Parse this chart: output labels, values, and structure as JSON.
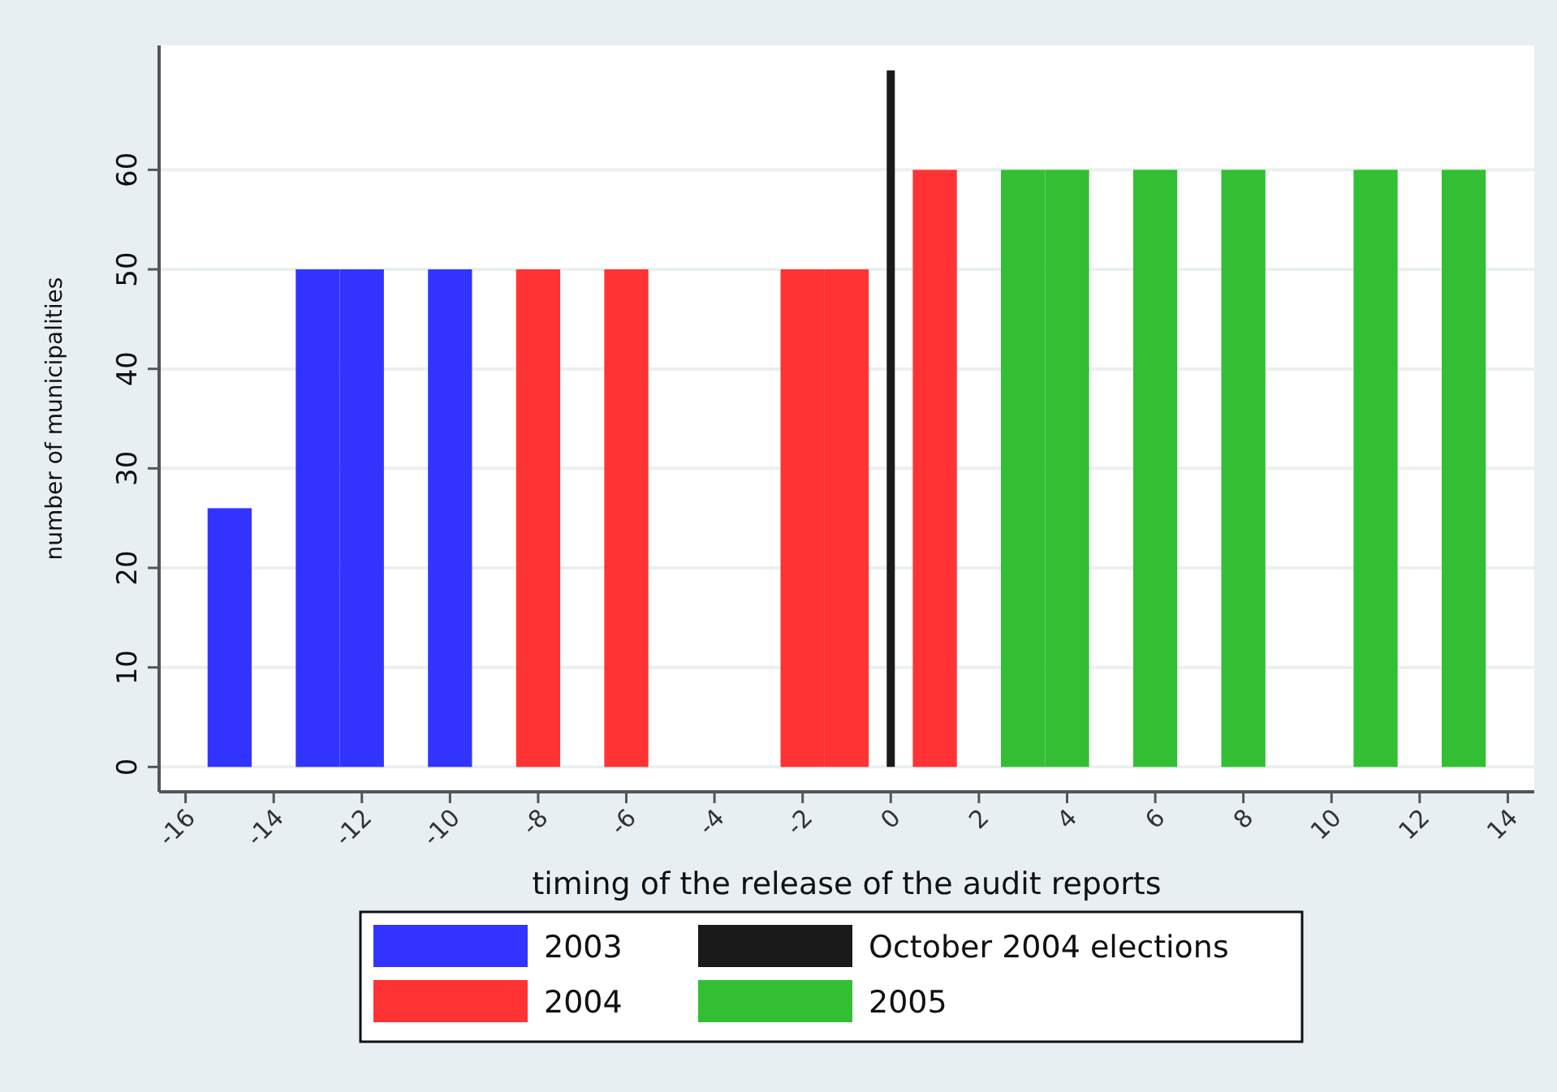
{
  "chart_data": {
    "type": "bar",
    "xlabel": "timing of the release of the audit reports",
    "ylabel": "number of municipalities",
    "series": [
      {
        "name": "2003",
        "color": "#3333ff",
        "x": [
          -15,
          -13,
          -12,
          -10
        ],
        "values": [
          26,
          50,
          50,
          50
        ]
      },
      {
        "name": "2004",
        "color": "#ff3333",
        "x": [
          -8,
          -6,
          -2,
          -1,
          1
        ],
        "values": [
          50,
          50,
          50,
          50,
          60
        ]
      },
      {
        "name": "October 2004 elections",
        "type": "line",
        "color": "#1a1a1a",
        "x": [
          0,
          0
        ],
        "values": [
          0,
          70
        ]
      },
      {
        "name": "2005",
        "color": "#33bf33",
        "x": [
          3,
          4,
          6,
          8,
          11,
          13
        ],
        "values": [
          60,
          60,
          60,
          60,
          60,
          60
        ]
      }
    ],
    "xlim": [
      -16.6,
      14.6
    ],
    "xticks": [
      -16,
      -14,
      -12,
      -10,
      -8,
      -6,
      -4,
      -2,
      0,
      2,
      4,
      6,
      8,
      10,
      12,
      14
    ],
    "ylim": [
      -2.5,
      72.5
    ],
    "yticks": [
      0,
      10,
      20,
      30,
      40,
      50,
      60
    ],
    "grid": "y",
    "legend": "bottom"
  }
}
